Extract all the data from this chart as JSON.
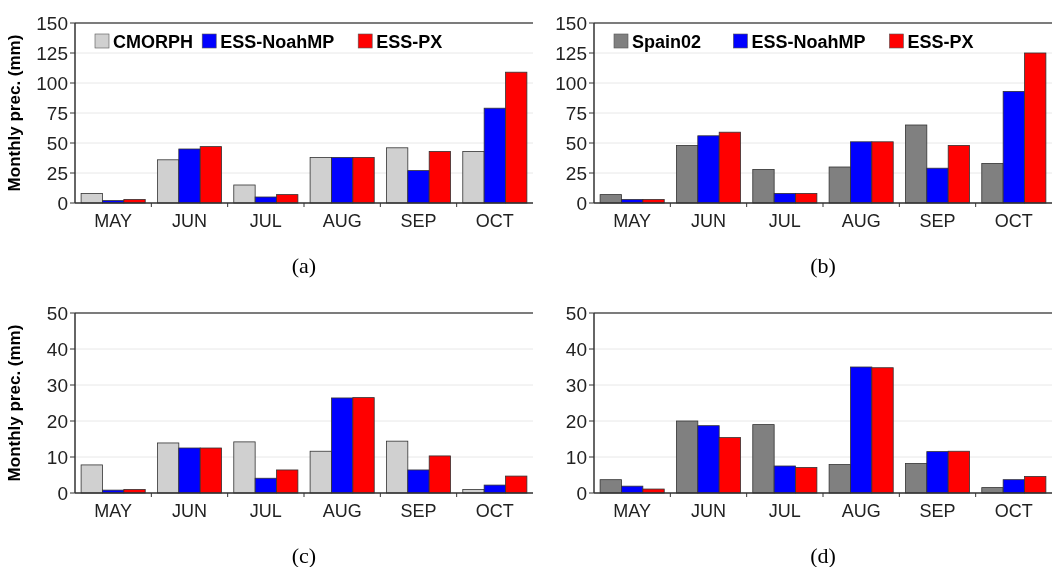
{
  "chart_data": [
    {
      "type": "bar",
      "categories": [
        "MAY",
        "JUN",
        "JUL",
        "AUG",
        "SEP",
        "OCT"
      ],
      "ylabel": "Monthly prec. (mm)",
      "ylim": [
        0,
        150
      ],
      "yticks": [
        0,
        25,
        50,
        75,
        100,
        125,
        150
      ],
      "grid": "y",
      "legend": "top left",
      "annotations": [
        "(a)"
      ],
      "series": [
        {
          "name": "CMORPH",
          "color": "#d0d0d0",
          "values": [
            8,
            36,
            15,
            38,
            46,
            43
          ]
        },
        {
          "name": "ESS-NoahMP",
          "color": "#0000ff",
          "values": [
            2,
            45,
            5,
            38,
            27,
            79
          ]
        },
        {
          "name": "ESS-PX",
          "color": "#ff0000",
          "values": [
            3,
            47,
            7,
            38,
            43,
            109
          ]
        }
      ]
    },
    {
      "type": "bar",
      "categories": [
        "MAY",
        "JUN",
        "JUL",
        "AUG",
        "SEP",
        "OCT"
      ],
      "ylim": [
        0,
        150
      ],
      "yticks": [
        0,
        25,
        50,
        75,
        100,
        125,
        150
      ],
      "grid": "y",
      "legend": "top left",
      "annotations": [
        "(b)"
      ],
      "series": [
        {
          "name": "Spain02",
          "color": "#808080",
          "values": [
            7,
            48,
            28,
            30,
            65,
            33
          ]
        },
        {
          "name": "ESS-NoahMP",
          "color": "#0000ff",
          "values": [
            3,
            56,
            8,
            51,
            29,
            93
          ]
        },
        {
          "name": "ESS-PX",
          "color": "#ff0000",
          "values": [
            3,
            59,
            8,
            51,
            48,
            125
          ]
        }
      ]
    },
    {
      "type": "bar",
      "categories": [
        "MAY",
        "JUN",
        "JUL",
        "AUG",
        "SEP",
        "OCT"
      ],
      "ylabel": "Monthly prec. (mm)",
      "ylim": [
        0,
        50
      ],
      "yticks": [
        0,
        10,
        20,
        30,
        40,
        50
      ],
      "grid": "y",
      "annotations": [
        "(c)"
      ],
      "series": [
        {
          "color": "#d0d0d0",
          "values": [
            7.8,
            13.9,
            14.2,
            11.6,
            14.4,
            1
          ]
        },
        {
          "color": "#0000ff",
          "values": [
            0.8,
            12.5,
            4.1,
            26.4,
            6.4,
            2.2
          ]
        },
        {
          "color": "#ff0000",
          "values": [
            1,
            12.5,
            6.4,
            26.5,
            10.3,
            4.7
          ]
        }
      ]
    },
    {
      "type": "bar",
      "categories": [
        "MAY",
        "JUN",
        "JUL",
        "AUG",
        "SEP",
        "OCT"
      ],
      "ylim": [
        0,
        50
      ],
      "yticks": [
        0,
        10,
        20,
        30,
        40,
        50
      ],
      "grid": "y",
      "annotations": [
        "(d)"
      ],
      "series": [
        {
          "color": "#808080",
          "values": [
            3.7,
            20,
            19,
            7.9,
            8.2,
            1.5
          ]
        },
        {
          "color": "#0000ff",
          "values": [
            1.9,
            18.7,
            7.5,
            35,
            11.5,
            3.7
          ]
        },
        {
          "color": "#ff0000",
          "values": [
            1.1,
            15.4,
            7.1,
            34.8,
            11.6,
            4.6
          ]
        }
      ]
    }
  ]
}
